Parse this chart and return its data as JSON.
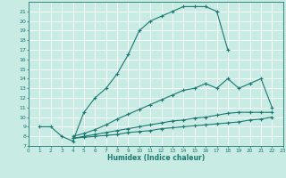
{
  "xlabel": "Humidex (Indice chaleur)",
  "xlim": [
    0,
    23
  ],
  "ylim": [
    7,
    22
  ],
  "xticks": [
    0,
    1,
    2,
    3,
    4,
    5,
    6,
    7,
    8,
    9,
    10,
    11,
    12,
    13,
    14,
    15,
    16,
    17,
    18,
    19,
    20,
    21,
    22,
    23
  ],
  "yticks": [
    7,
    8,
    9,
    10,
    11,
    12,
    13,
    14,
    15,
    16,
    17,
    18,
    19,
    20,
    21
  ],
  "bg_color": "#c8ece4",
  "line_color": "#1a7870",
  "grid_color": "#ffffff",
  "curve1_x": [
    1,
    2,
    3,
    4,
    5,
    6,
    7,
    8,
    9,
    10,
    11,
    12,
    13,
    14,
    15,
    16,
    17,
    18
  ],
  "curve1_y": [
    9.0,
    9.0,
    8.0,
    7.5,
    10.5,
    12.0,
    13.0,
    14.5,
    16.5,
    19.0,
    20.0,
    20.5,
    21.0,
    21.5,
    21.5,
    21.5,
    21.0,
    17.0
  ],
  "curve2_x": [
    4,
    5,
    6,
    7,
    8,
    9,
    10,
    11,
    12,
    13,
    14,
    15,
    16,
    17,
    18,
    19,
    20,
    21,
    22
  ],
  "curve2_y": [
    8.0,
    8.3,
    8.7,
    9.2,
    9.8,
    10.3,
    10.8,
    11.3,
    11.8,
    12.3,
    12.8,
    13.0,
    13.5,
    13.0,
    14.0,
    13.0,
    13.5,
    14.0,
    11.0
  ],
  "curve3_x": [
    4,
    5,
    6,
    7,
    8,
    9,
    10,
    11,
    12,
    13,
    14,
    15,
    16,
    17,
    18,
    19,
    20,
    21,
    22
  ],
  "curve3_y": [
    7.8,
    8.0,
    8.2,
    8.4,
    8.6,
    8.8,
    9.0,
    9.2,
    9.4,
    9.6,
    9.7,
    9.9,
    10.0,
    10.2,
    10.4,
    10.5,
    10.5,
    10.5,
    10.5
  ],
  "curve4_x": [
    4,
    5,
    6,
    7,
    8,
    9,
    10,
    11,
    12,
    13,
    14,
    15,
    16,
    17,
    18,
    19,
    20,
    21,
    22
  ],
  "curve4_y": [
    7.8,
    7.9,
    8.0,
    8.1,
    8.2,
    8.4,
    8.5,
    8.6,
    8.8,
    8.9,
    9.0,
    9.1,
    9.2,
    9.3,
    9.4,
    9.5,
    9.7,
    9.8,
    10.0
  ]
}
